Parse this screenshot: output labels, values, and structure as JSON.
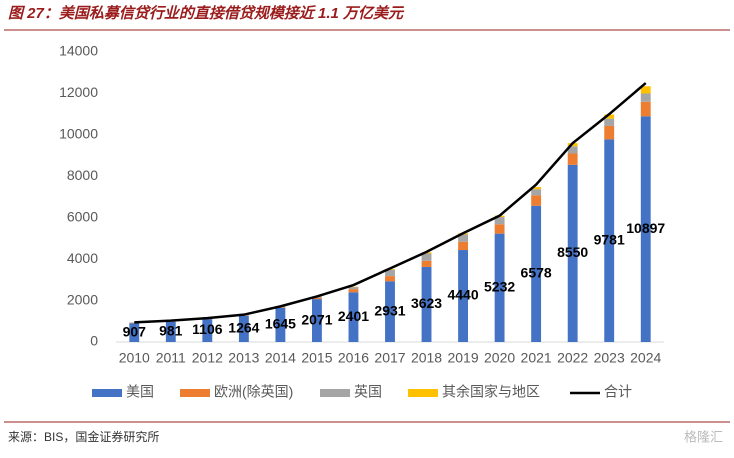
{
  "header": {
    "title": "图 27：美国私募信贷行业的直接借贷规模接近 1.1 万亿美元"
  },
  "chart_data": {
    "type": "bar",
    "stacked": true,
    "categories": [
      "2010",
      "2011",
      "2012",
      "2013",
      "2014",
      "2015",
      "2016",
      "2017",
      "2018",
      "2019",
      "2020",
      "2021",
      "2022",
      "2023",
      "2024"
    ],
    "series": [
      {
        "name": "美国",
        "color": "#4472c4",
        "values": [
          907,
          981,
          1106,
          1264,
          1645,
          2071,
          2401,
          2931,
          3623,
          4440,
          5232,
          6578,
          8550,
          9781,
          10897
        ],
        "show_labels": true
      },
      {
        "name": "欧洲(除英国)",
        "color": "#ed7d31",
        "values": [
          20,
          20,
          20,
          20,
          30,
          60,
          150,
          250,
          300,
          400,
          450,
          500,
          550,
          650,
          700
        ]
      },
      {
        "name": "英国",
        "color": "#a5a5a5",
        "values": [
          20,
          20,
          20,
          30,
          40,
          60,
          100,
          300,
          350,
          350,
          350,
          300,
          350,
          350,
          400
        ]
      },
      {
        "name": "其余国家与地区",
        "color": "#ffc000",
        "values": [
          0,
          0,
          0,
          0,
          0,
          10,
          20,
          40,
          60,
          60,
          70,
          100,
          150,
          200,
          350
        ]
      },
      {
        "name": "合计",
        "color": "#000000",
        "type": "line",
        "values": [
          950,
          1030,
          1150,
          1320,
          1720,
          2200,
          2750,
          3550,
          4350,
          5250,
          6100,
          7600,
          9600,
          11000,
          12500
        ]
      }
    ],
    "ylim": [
      0,
      14000
    ],
    "yticks": [
      0,
      2000,
      4000,
      6000,
      8000,
      10000,
      12000,
      14000
    ],
    "grid": false,
    "legend": "bottom"
  },
  "footer": {
    "source": "来源：BIS，国金证券研究所",
    "watermark": "格隆汇"
  }
}
